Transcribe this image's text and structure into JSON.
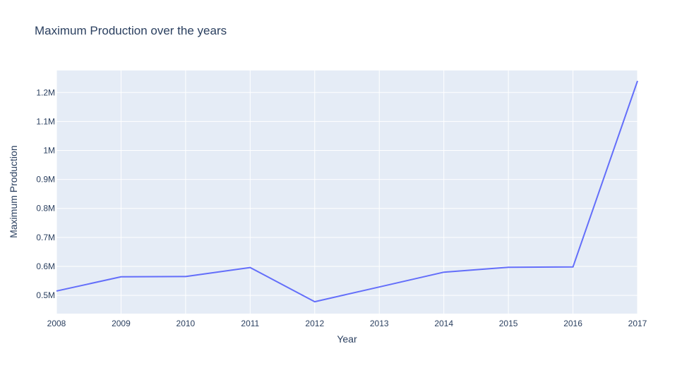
{
  "chart_data": {
    "type": "line",
    "title": "Maximum Production over the years",
    "xlabel": "Year",
    "ylabel": "Maximum Production",
    "x": [
      2008,
      2009,
      2010,
      2011,
      2012,
      2013,
      2014,
      2015,
      2016,
      2017
    ],
    "x_tick_labels": [
      "2008",
      "2009",
      "2010",
      "2011",
      "2012",
      "2013",
      "2014",
      "2015",
      "2016",
      "2017"
    ],
    "series": [
      {
        "values": [
          515000,
          564000,
          565000,
          596000,
          478000,
          529000,
          580000,
          597000,
          598000,
          1240000
        ],
        "color": "#636efa"
      }
    ],
    "xlim": [
      2008,
      2017
    ],
    "ylim": [
      437000,
      1276000
    ],
    "y_ticks": [
      500000,
      600000,
      700000,
      800000,
      900000,
      1000000,
      1100000,
      1200000
    ],
    "y_tick_labels": [
      "0.5M",
      "0.6M",
      "0.7M",
      "0.8M",
      "0.9M",
      "1M",
      "1.1M",
      "1.2M"
    ],
    "grid": true,
    "legend": "none",
    "colors": {
      "plot_background": "#e5ecf6",
      "grid": "#ffffff",
      "text": "#2a3f5f"
    }
  }
}
